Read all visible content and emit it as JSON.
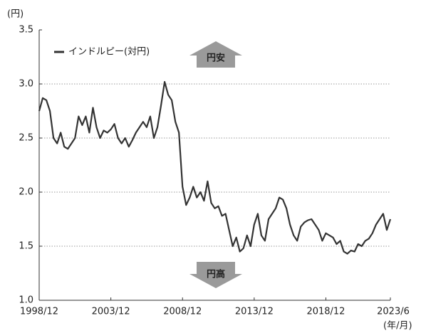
{
  "chart_data": {
    "type": "line",
    "y_unit_label": "(円)",
    "x_unit_label": "(年/月)",
    "annotations": [
      "円安",
      "円高"
    ],
    "x": [
      "1998/12",
      "1999/3",
      "1999/6",
      "1999/9",
      "1999/12",
      "2000/3",
      "2000/6",
      "2000/9",
      "2000/12",
      "2001/3",
      "2001/6",
      "2001/9",
      "2001/12",
      "2002/3",
      "2002/6",
      "2002/9",
      "2002/12",
      "2003/3",
      "2003/6",
      "2003/9",
      "2003/12",
      "2004/3",
      "2004/6",
      "2004/9",
      "2004/12",
      "2005/3",
      "2005/6",
      "2005/9",
      "2005/12",
      "2006/3",
      "2006/6",
      "2006/9",
      "2006/12",
      "2007/3",
      "2007/6",
      "2007/9",
      "2007/12",
      "2008/3",
      "2008/6",
      "2008/9",
      "2008/12",
      "2009/3",
      "2009/6",
      "2009/9",
      "2009/12",
      "2010/3",
      "2010/6",
      "2010/9",
      "2010/12",
      "2011/3",
      "2011/6",
      "2011/9",
      "2011/12",
      "2012/3",
      "2012/6",
      "2012/9",
      "2012/12",
      "2013/3",
      "2013/6",
      "2013/9",
      "2013/12",
      "2014/3",
      "2014/6",
      "2014/9",
      "2014/12",
      "2015/3",
      "2015/6",
      "2015/9",
      "2015/12",
      "2016/3",
      "2016/6",
      "2016/9",
      "2016/12",
      "2017/3",
      "2017/6",
      "2017/9",
      "2017/12",
      "2018/3",
      "2018/6",
      "2018/9",
      "2018/12",
      "2019/3",
      "2019/6",
      "2019/9",
      "2019/12",
      "2020/3",
      "2020/6",
      "2020/9",
      "2020/12",
      "2021/3",
      "2021/6",
      "2021/9",
      "2021/12",
      "2022/3",
      "2022/6",
      "2022/9",
      "2022/12",
      "2023/3",
      "2023/6"
    ],
    "series": [
      {
        "name": "インドルピー(対円)",
        "color": "#333333",
        "values": [
          2.75,
          2.87,
          2.85,
          2.75,
          2.5,
          2.45,
          2.55,
          2.42,
          2.4,
          2.45,
          2.5,
          2.7,
          2.62,
          2.7,
          2.55,
          2.78,
          2.6,
          2.5,
          2.57,
          2.55,
          2.58,
          2.63,
          2.5,
          2.45,
          2.5,
          2.42,
          2.48,
          2.55,
          2.6,
          2.65,
          2.6,
          2.7,
          2.5,
          2.6,
          2.8,
          3.02,
          2.9,
          2.85,
          2.65,
          2.55,
          2.05,
          1.88,
          1.95,
          2.05,
          1.95,
          2.0,
          1.92,
          2.1,
          1.9,
          1.85,
          1.87,
          1.78,
          1.8,
          1.65,
          1.5,
          1.58,
          1.45,
          1.48,
          1.6,
          1.5,
          1.7,
          1.8,
          1.6,
          1.55,
          1.75,
          1.8,
          1.85,
          1.95,
          1.93,
          1.85,
          1.7,
          1.6,
          1.55,
          1.68,
          1.72,
          1.74,
          1.75,
          1.7,
          1.65,
          1.55,
          1.62,
          1.6,
          1.58,
          1.52,
          1.55,
          1.45,
          1.43,
          1.46,
          1.45,
          1.52,
          1.5,
          1.55,
          1.57,
          1.62,
          1.7,
          1.75,
          1.8,
          1.65,
          1.75
        ]
      }
    ],
    "xlim": [
      "1998/12",
      "2023/6"
    ],
    "xticks": [
      "1998/12",
      "2003/12",
      "2008/12",
      "2013/12",
      "2018/12",
      "2023/6"
    ],
    "ylim": [
      1,
      3.5
    ],
    "yticks": [
      {
        "value": 1,
        "label": "1.0"
      },
      1.5,
      {
        "value": 2,
        "label": "2.0"
      },
      2.5,
      {
        "value": 3,
        "label": "3.0"
      },
      3.5
    ],
    "grid": true
  }
}
